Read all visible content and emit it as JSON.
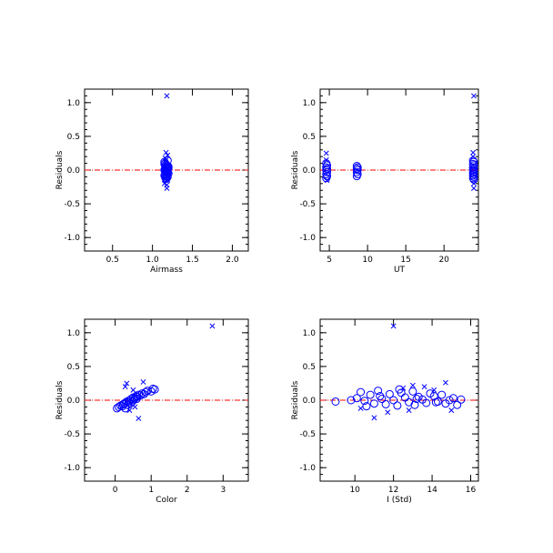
{
  "chart_data": [
    {
      "type": "scatter",
      "xlabel": "Airmass",
      "ylabel": "Residuals",
      "xlim": [
        0.15,
        2.2
      ],
      "ylim": [
        -1.2,
        1.2
      ],
      "xticks": [
        0.5,
        1.0,
        1.5,
        2.0
      ],
      "xticklabels": [
        "0.5",
        "1.0",
        "1.5",
        "2.0"
      ],
      "yticks": [
        -1.0,
        -0.5,
        0.0,
        0.5,
        1.0
      ],
      "yticklabels": [
        "-1.0",
        "-0.5",
        "0.0",
        "0.5",
        "1.0"
      ],
      "reference_line_y": 0.0,
      "series": [
        {
          "marker": "circle",
          "x": [
            1.15,
            1.16,
            1.17,
            1.18,
            1.19,
            1.2,
            1.16,
            1.17,
            1.18,
            1.19,
            1.15,
            1.16,
            1.17,
            1.18,
            1.19,
            1.2,
            1.16,
            1.18,
            1.15,
            1.17,
            1.19,
            1.16,
            1.18,
            1.17,
            1.19,
            1.15,
            1.2,
            1.16,
            1.18,
            1.17
          ],
          "y": [
            0.12,
            0.1,
            0.08,
            0.07,
            0.06,
            0.05,
            0.04,
            0.03,
            0.02,
            0.01,
            0.0,
            -0.01,
            -0.02,
            -0.03,
            -0.04,
            -0.05,
            -0.06,
            -0.07,
            -0.08,
            -0.09,
            -0.1,
            -0.11,
            -0.12,
            -0.13,
            0.14,
            0.09,
            0.03,
            -0.02,
            -0.05,
            0.0
          ]
        },
        {
          "marker": "x",
          "x": [
            1.18,
            1.17,
            1.19,
            1.16,
            1.18,
            1.15,
            1.19,
            1.17,
            1.18
          ],
          "y": [
            1.1,
            0.26,
            0.22,
            0.18,
            -0.27,
            -0.2,
            -0.15,
            0.15,
            -0.22
          ]
        }
      ]
    },
    {
      "type": "scatter",
      "xlabel": "UT",
      "ylabel": "Residuals",
      "xlim": [
        3.8,
        24.5
      ],
      "ylim": [
        -1.2,
        1.2
      ],
      "xticks": [
        5,
        10,
        15,
        20
      ],
      "xticklabels": [
        "5",
        "10",
        "15",
        "20"
      ],
      "yticks": [
        -1.0,
        -0.5,
        0.0,
        0.5,
        1.0
      ],
      "yticklabels": [
        "-1.0",
        "-0.5",
        "0.0",
        "0.5",
        "1.0"
      ],
      "reference_line_y": 0.0,
      "series": [
        {
          "marker": "circle",
          "x": [
            4.6,
            4.7,
            4.6,
            4.7,
            4.6,
            4.7,
            4.6,
            4.7,
            4.6,
            8.6,
            8.7,
            8.6,
            8.7,
            8.6,
            8.7,
            8.6,
            23.8,
            23.9,
            23.8,
            23.9,
            23.8,
            23.9,
            23.8,
            23.9,
            23.8,
            23.9,
            23.8,
            23.9,
            23.8,
            23.9
          ],
          "y": [
            0.1,
            0.07,
            0.04,
            0.02,
            0.0,
            -0.03,
            -0.06,
            -0.09,
            -0.12,
            0.06,
            0.04,
            0.02,
            0.0,
            -0.03,
            -0.06,
            -0.09,
            0.14,
            0.12,
            0.09,
            0.07,
            0.04,
            0.02,
            0.0,
            -0.02,
            -0.04,
            -0.06,
            -0.08,
            -0.1,
            -0.12,
            -0.14
          ]
        },
        {
          "marker": "x",
          "x": [
            4.6,
            4.7,
            23.9,
            23.8,
            23.9,
            23.8,
            23.9,
            4.6
          ],
          "y": [
            0.25,
            -0.15,
            1.1,
            0.26,
            -0.27,
            0.2,
            -0.2,
            0.15
          ]
        }
      ]
    },
    {
      "type": "scatter",
      "xlabel": "Color",
      "ylabel": "Residuals",
      "xlim": [
        -0.85,
        3.7
      ],
      "ylim": [
        -1.2,
        1.2
      ],
      "xticks": [
        0,
        1,
        2,
        3
      ],
      "xticklabels": [
        "0",
        "1",
        "2",
        "3"
      ],
      "yticks": [
        -1.0,
        -0.5,
        0.0,
        0.5,
        1.0
      ],
      "yticklabels": [
        "-1.0",
        "-0.5",
        "0.0",
        "0.5",
        "1.0"
      ],
      "reference_line_y": 0.0,
      "series": [
        {
          "marker": "circle",
          "x": [
            0.05,
            0.1,
            0.15,
            0.2,
            0.22,
            0.25,
            0.28,
            0.3,
            0.32,
            0.35,
            0.38,
            0.4,
            0.42,
            0.45,
            0.48,
            0.5,
            0.52,
            0.55,
            0.58,
            0.6,
            0.62,
            0.65,
            0.7,
            0.75,
            0.8,
            0.85,
            0.9,
            1.0,
            1.05,
            1.1
          ],
          "y": [
            -0.12,
            -0.1,
            -0.08,
            -0.09,
            -0.06,
            -0.05,
            -0.12,
            -0.04,
            -0.02,
            -0.07,
            -0.03,
            0.0,
            -0.05,
            0.02,
            -0.02,
            0.04,
            0.01,
            0.03,
            0.06,
            0.02,
            0.05,
            0.08,
            0.07,
            0.1,
            0.09,
            0.12,
            0.14,
            0.13,
            0.17,
            0.16
          ]
        },
        {
          "marker": "x",
          "x": [
            2.7,
            0.78,
            0.32,
            0.65,
            0.4,
            0.5,
            0.28,
            0.55
          ],
          "y": [
            1.1,
            0.27,
            0.25,
            -0.27,
            -0.15,
            0.15,
            0.2,
            -0.1
          ]
        }
      ]
    },
    {
      "type": "scatter",
      "xlabel": "I (Std)",
      "ylabel": "Residuals",
      "xlim": [
        8.2,
        16.4
      ],
      "ylim": [
        -1.2,
        1.2
      ],
      "xticks": [
        10,
        12,
        14,
        16
      ],
      "xticklabels": [
        "10",
        "12",
        "14",
        "16"
      ],
      "yticks": [
        -1.0,
        -0.5,
        0.0,
        0.5,
        1.0
      ],
      "yticklabels": [
        "-1.0",
        "-0.5",
        "0.0",
        "0.5",
        "1.0"
      ],
      "reference_line_y": 0.0,
      "series": [
        {
          "marker": "circle",
          "x": [
            9.0,
            9.8,
            10.1,
            10.3,
            10.5,
            10.8,
            11.0,
            11.2,
            11.4,
            11.6,
            11.8,
            12.0,
            12.2,
            12.4,
            12.6,
            12.8,
            13.0,
            13.1,
            13.3,
            13.5,
            13.7,
            13.9,
            14.1,
            14.3,
            14.5,
            14.7,
            14.9,
            15.1,
            15.3,
            15.5,
            10.6,
            11.3,
            12.3,
            13.2,
            14.2
          ],
          "y": [
            -0.02,
            0.0,
            0.03,
            0.12,
            -0.01,
            0.08,
            -0.05,
            0.14,
            0.02,
            -0.06,
            0.09,
            0.0,
            -0.08,
            0.11,
            0.04,
            -0.03,
            0.13,
            -0.07,
            0.05,
            0.01,
            -0.04,
            0.1,
            0.06,
            -0.02,
            0.08,
            -0.05,
            0.0,
            0.03,
            -0.07,
            0.01,
            -0.09,
            0.06,
            0.16,
            0.02,
            -0.03
          ]
        },
        {
          "marker": "x",
          "x": [
            12.0,
            11.0,
            14.7,
            13.0,
            12.5,
            14.1,
            11.7,
            10.3,
            12.8,
            13.6,
            15.0
          ],
          "y": [
            1.1,
            -0.26,
            0.26,
            0.22,
            0.18,
            0.15,
            -0.18,
            -0.12,
            -0.15,
            0.2,
            -0.15
          ]
        }
      ]
    }
  ],
  "colors": {
    "marker": "#0000ff",
    "reference_line": "#ff0000",
    "axes": "#000000",
    "background": "#ffffff"
  }
}
